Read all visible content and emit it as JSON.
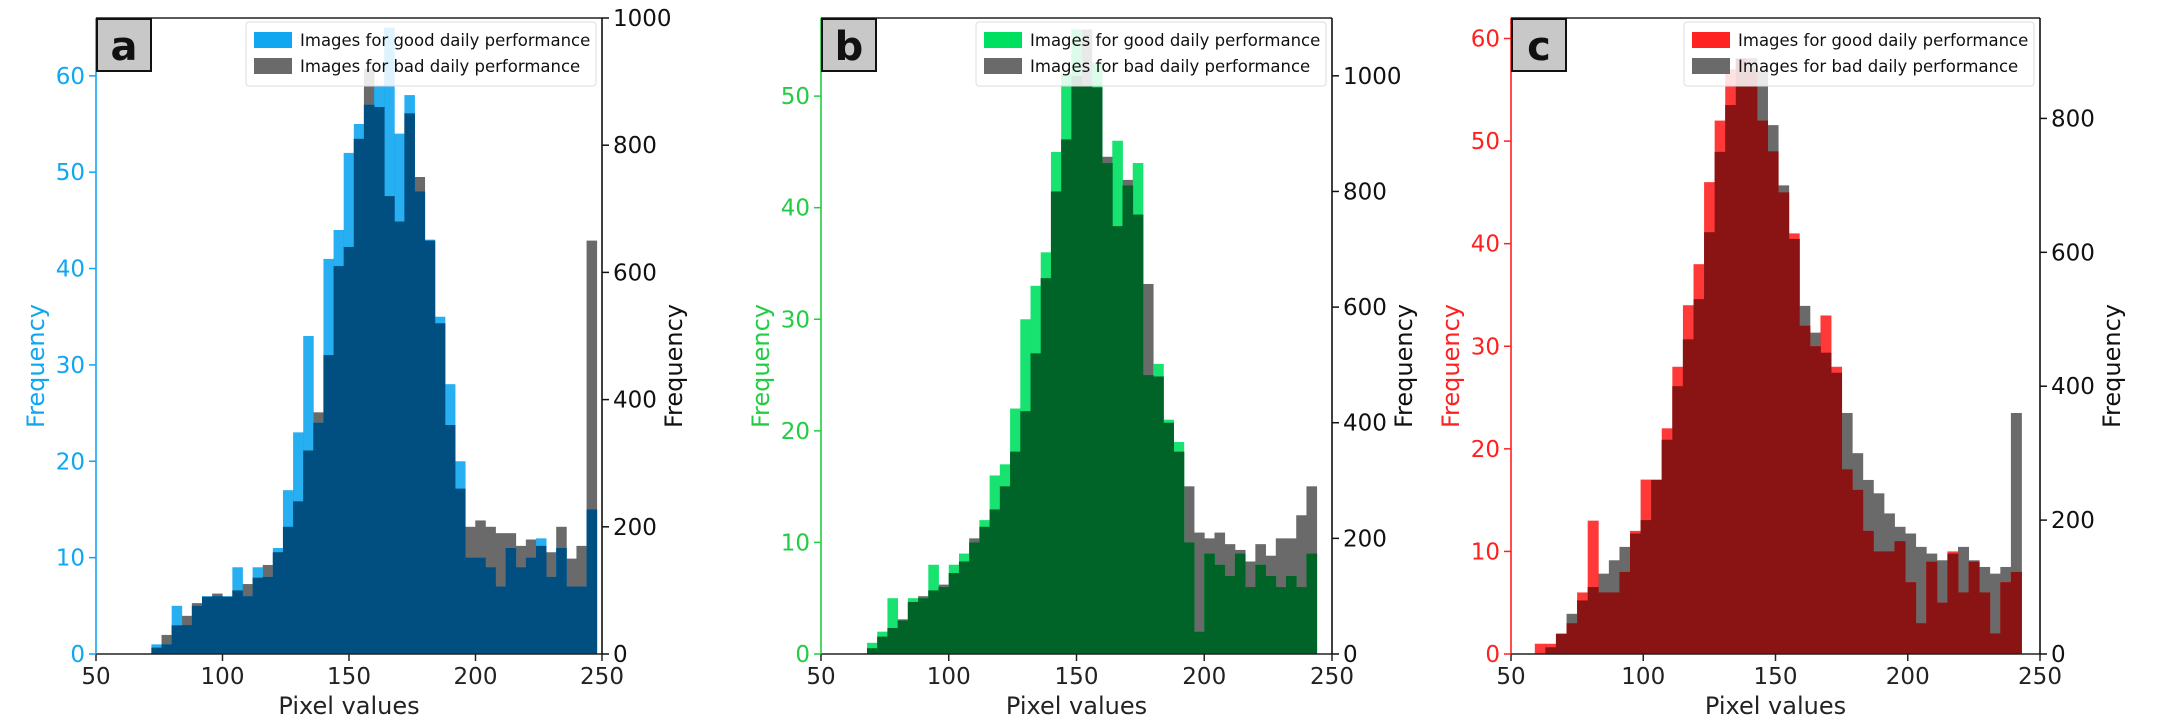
{
  "chart_data": [
    {
      "type": "histogram",
      "panel_label": "a",
      "xlabel": "Pixel values",
      "ylabel_left": "Frequency",
      "ylabel_right": "Frequency",
      "left_axis_color": "#10a6f0",
      "right_axis_color": "#111111",
      "xlim": [
        50,
        250
      ],
      "ylim_left": [
        0,
        66
      ],
      "ylim_right": [
        0,
        1000
      ],
      "xticks": [
        50,
        100,
        150,
        200,
        250
      ],
      "yticks_left": [
        0,
        10,
        20,
        30,
        40,
        50,
        60
      ],
      "yticks_right": [
        0,
        200,
        400,
        600,
        800,
        1000
      ],
      "legend_position": "top-right",
      "bin_x": [
        59.9,
        63.9,
        67.9,
        71.9,
        75.9,
        79.9,
        83.9,
        87.9,
        91.9,
        95.9,
        99.9,
        103.9,
        107.9,
        111.9,
        115.9,
        119.9,
        123.9,
        127.9,
        131.9,
        135.9,
        139.9,
        143.9,
        147.9,
        151.9,
        155.9,
        159.9,
        163.9,
        167.9,
        171.9,
        175.9,
        179.9,
        183.9,
        187.9,
        191.9,
        195.9,
        199.9,
        203.9,
        207.9,
        211.9,
        215.9,
        219.9,
        223.9,
        227.9,
        231.9,
        235.9,
        239.9,
        243.9
      ],
      "series": [
        {
          "name": "Images for good daily performance",
          "axis": "left",
          "color": "#10a6f0",
          "values": [
            0,
            0,
            0,
            1,
            1,
            5,
            3,
            5,
            6,
            6,
            6,
            9,
            6,
            9,
            8,
            11,
            17,
            23,
            33,
            24,
            41,
            44,
            52,
            55,
            57,
            59,
            65,
            54,
            58,
            48,
            43,
            35,
            28,
            20,
            10,
            10,
            9,
            7,
            11,
            9,
            10,
            12,
            8,
            11,
            7,
            7,
            15
          ]
        },
        {
          "name": "Images for bad daily performance",
          "axis": "right",
          "color": "#6a6a6a",
          "values": [
            0,
            0,
            0,
            10,
            30,
            45,
            60,
            80,
            90,
            95,
            90,
            100,
            110,
            120,
            140,
            160,
            200,
            240,
            320,
            380,
            470,
            610,
            640,
            810,
            920,
            860,
            720,
            680,
            850,
            750,
            650,
            520,
            360,
            260,
            200,
            210,
            200,
            190,
            190,
            170,
            180,
            170,
            160,
            200,
            150,
            170,
            650
          ]
        }
      ]
    },
    {
      "type": "histogram",
      "panel_label": "b",
      "xlabel": "Pixel values",
      "ylabel_left": "Frequency",
      "ylabel_right": "Frequency",
      "left_axis_color": "#22cc44",
      "right_axis_color": "#111111",
      "xlim": [
        50,
        250
      ],
      "ylim_left": [
        0,
        57
      ],
      "ylim_right": [
        0,
        1100
      ],
      "xticks": [
        50,
        100,
        150,
        200,
        250
      ],
      "yticks_left": [
        0,
        10,
        20,
        30,
        40,
        50
      ],
      "yticks_right": [
        0,
        200,
        400,
        600,
        800,
        1000
      ],
      "legend_position": "top-right",
      "bin_x": [
        56,
        60,
        64,
        68,
        72,
        76,
        80,
        84,
        88,
        92,
        96,
        100,
        104,
        108,
        112,
        116,
        120,
        124,
        128,
        132,
        136,
        140,
        144,
        148,
        152,
        156,
        160,
        164,
        168,
        172,
        176,
        180,
        184,
        188,
        192,
        196,
        200,
        204,
        208,
        212,
        216,
        220,
        224,
        228,
        232,
        236,
        240
      ],
      "series": [
        {
          "name": "Images for good daily performance",
          "axis": "left",
          "color": "#00e060",
          "values": [
            0,
            0,
            0,
            1,
            2,
            5,
            3,
            5,
            5,
            8,
            6,
            8,
            9,
            10,
            12,
            16,
            17,
            22,
            30,
            33,
            36,
            45,
            52,
            56,
            51,
            53,
            44,
            46,
            42,
            44,
            25,
            26,
            21,
            19,
            10,
            2,
            9,
            8,
            7,
            9,
            6,
            8,
            7,
            6,
            7,
            6,
            9
          ]
        },
        {
          "name": "Images for bad daily performance",
          "axis": "right",
          "color": "#6a6a6a",
          "values": [
            0,
            0,
            0,
            10,
            30,
            45,
            60,
            90,
            100,
            110,
            120,
            140,
            160,
            200,
            220,
            250,
            290,
            350,
            420,
            520,
            650,
            800,
            890,
            1000,
            1080,
            980,
            860,
            740,
            820,
            760,
            640,
            480,
            400,
            350,
            290,
            210,
            200,
            210,
            190,
            180,
            160,
            190,
            170,
            200,
            200,
            240,
            290
          ]
        }
      ]
    },
    {
      "type": "histogram",
      "panel_label": "c",
      "xlabel": "Pixel values",
      "ylabel_left": "Frequency",
      "ylabel_right": "Frequency",
      "left_axis_color": "#ff2020",
      "right_axis_color": "#111111",
      "xlim": [
        50,
        250
      ],
      "ylim_left": [
        0,
        62
      ],
      "ylim_right": [
        0,
        950
      ],
      "xticks": [
        50,
        100,
        150,
        200,
        250
      ],
      "yticks_left": [
        0,
        10,
        20,
        30,
        40,
        50,
        60
      ],
      "yticks_right": [
        0,
        200,
        400,
        600,
        800
      ],
      "legend_position": "top-right",
      "bin_x": [
        55,
        59,
        63,
        67,
        71,
        75,
        79,
        83,
        87,
        91,
        95,
        99,
        103,
        107,
        111,
        115,
        119,
        123,
        127,
        131,
        135,
        139,
        143,
        147,
        151,
        155,
        159,
        163,
        167,
        171,
        175,
        179,
        183,
        187,
        191,
        195,
        199,
        203,
        207,
        211,
        215,
        219,
        223,
        227,
        231,
        235,
        239
      ],
      "series": [
        {
          "name": "Images for good daily performance",
          "axis": "left",
          "color": "#ff2222",
          "values": [
            0,
            1,
            1,
            2,
            3,
            6,
            13,
            6,
            6,
            8,
            12,
            17,
            17,
            22,
            28,
            34,
            38,
            46,
            52,
            57,
            58,
            57,
            52,
            49,
            45,
            41,
            32,
            30,
            33,
            28,
            18,
            16,
            12,
            10,
            10,
            11,
            7,
            3,
            9,
            5,
            10,
            6,
            9,
            6,
            2,
            7,
            8
          ]
        },
        {
          "name": "Images for bad daily performance",
          "axis": "right",
          "color": "#6a6a6a",
          "values": [
            0,
            0,
            10,
            30,
            60,
            80,
            100,
            120,
            140,
            160,
            180,
            200,
            260,
            320,
            400,
            470,
            530,
            630,
            750,
            820,
            890,
            890,
            870,
            790,
            700,
            620,
            520,
            480,
            450,
            420,
            360,
            300,
            260,
            240,
            210,
            190,
            180,
            160,
            150,
            140,
            150,
            160,
            140,
            130,
            120,
            130,
            360
          ]
        }
      ]
    }
  ]
}
